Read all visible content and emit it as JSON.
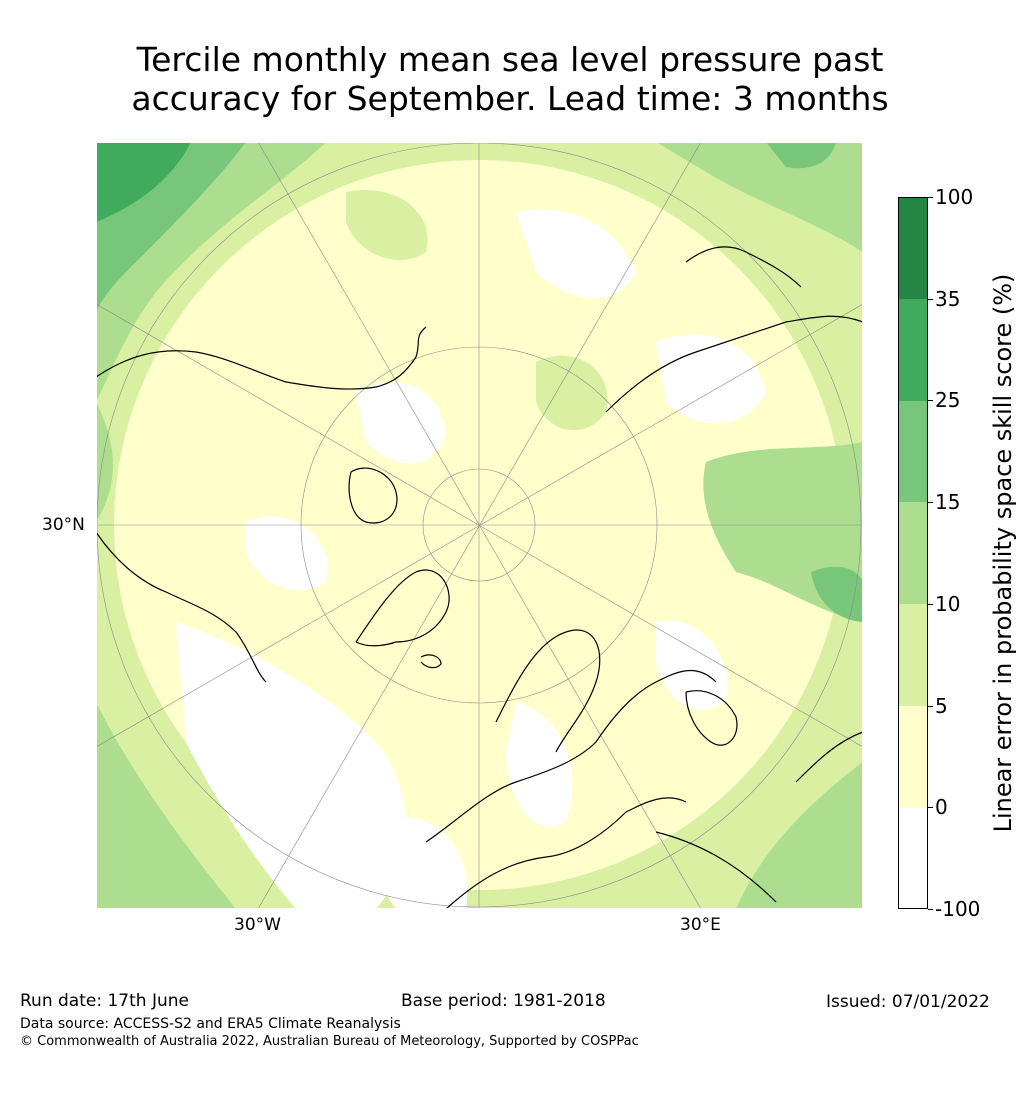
{
  "title": {
    "line1": "Tercile monthly mean sea level pressure past",
    "line2": "accuracy for September. Lead time: 3 months"
  },
  "map": {
    "projection": "north-polar-stereographic",
    "lat_label": "30°N",
    "lon_labels": {
      "west": "30°W",
      "east": "30°E"
    },
    "grid": true
  },
  "colorbar": {
    "title": "Linear error in probability space skill score (%)",
    "bounds": [
      "100",
      "35",
      "25",
      "15",
      "10",
      "5",
      "0",
      "-100"
    ],
    "bins": [
      {
        "from": -100,
        "to": 0,
        "color": "#ffffff"
      },
      {
        "from": 0,
        "to": 5,
        "color": "#ffffcc"
      },
      {
        "from": 5,
        "to": 10,
        "color": "#d9f0a3"
      },
      {
        "from": 10,
        "to": 15,
        "color": "#addd8e"
      },
      {
        "from": 15,
        "to": 25,
        "color": "#78c679"
      },
      {
        "from": 25,
        "to": 35,
        "color": "#41ab5d"
      },
      {
        "from": 35,
        "to": 100,
        "color": "#238443"
      }
    ]
  },
  "footer": {
    "run_date": "Run date: 17th June",
    "base_period": "Base period: 1981-2018",
    "issued": "Issued: 07/01/2022",
    "data_source": "Data source: ACCESS-S2 and ERA5 Climate Reanalysis",
    "copyright": "© Commonwealth of Australia 2022, Australian Bureau of Meteorology, Supported by COSPPac"
  }
}
